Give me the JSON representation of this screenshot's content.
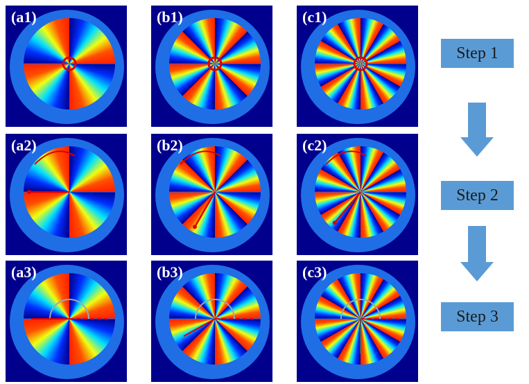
{
  "panels": [
    "(a1)",
    "(b1)",
    "(c1)",
    "(a2)",
    "(b2)",
    "(c2)",
    "(a3)",
    "(b3)",
    "(c3)"
  ],
  "steps": [
    "Step 1",
    "Step 2",
    "Step 3"
  ]
}
